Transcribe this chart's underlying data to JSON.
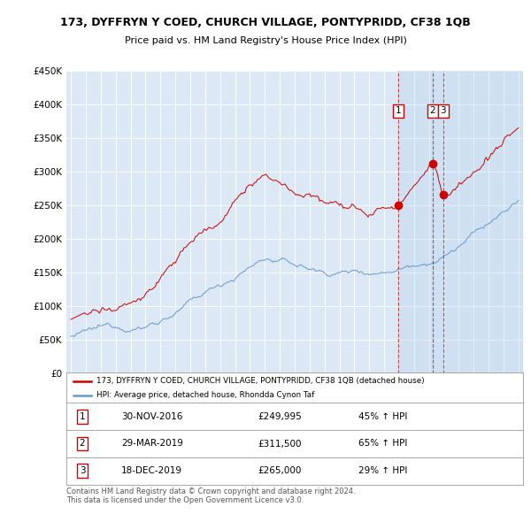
{
  "title": "173, DYFFRYN Y COED, CHURCH VILLAGE, PONTYPRIDD, CF38 1QB",
  "subtitle": "Price paid vs. HM Land Registry's House Price Index (HPI)",
  "red_label": "173, DYFFRYN Y COED, CHURCH VILLAGE, PONTYPRIDD, CF38 1QB (detached house)",
  "blue_label": "HPI: Average price, detached house, Rhondda Cynon Taf",
  "footer": "Contains HM Land Registry data © Crown copyright and database right 2024.\nThis data is licensed under the Open Government Licence v3.0.",
  "sales": [
    {
      "num": 1,
      "date": "30-NOV-2016",
      "price": "£249,995",
      "pct": "45% ↑ HPI",
      "year": 2016.92
    },
    {
      "num": 2,
      "date": "29-MAR-2019",
      "price": "£311,500",
      "pct": "65% ↑ HPI",
      "year": 2019.25
    },
    {
      "num": 3,
      "date": "18-DEC-2019",
      "price": "£265,000",
      "pct": "29% ↑ HPI",
      "year": 2019.96
    }
  ],
  "sale_values": [
    249995,
    311500,
    265000
  ],
  "ylim": [
    0,
    450000
  ],
  "xlim": [
    1994.7,
    2025.3
  ],
  "yticks": [
    0,
    50000,
    100000,
    150000,
    200000,
    250000,
    300000,
    350000,
    400000,
    450000
  ],
  "red_color": "#cc0000",
  "blue_color": "#6699cc",
  "grid_color": "#ffffff",
  "axis_bg": "#dce8f5",
  "shade_color": "#c8d8ee"
}
